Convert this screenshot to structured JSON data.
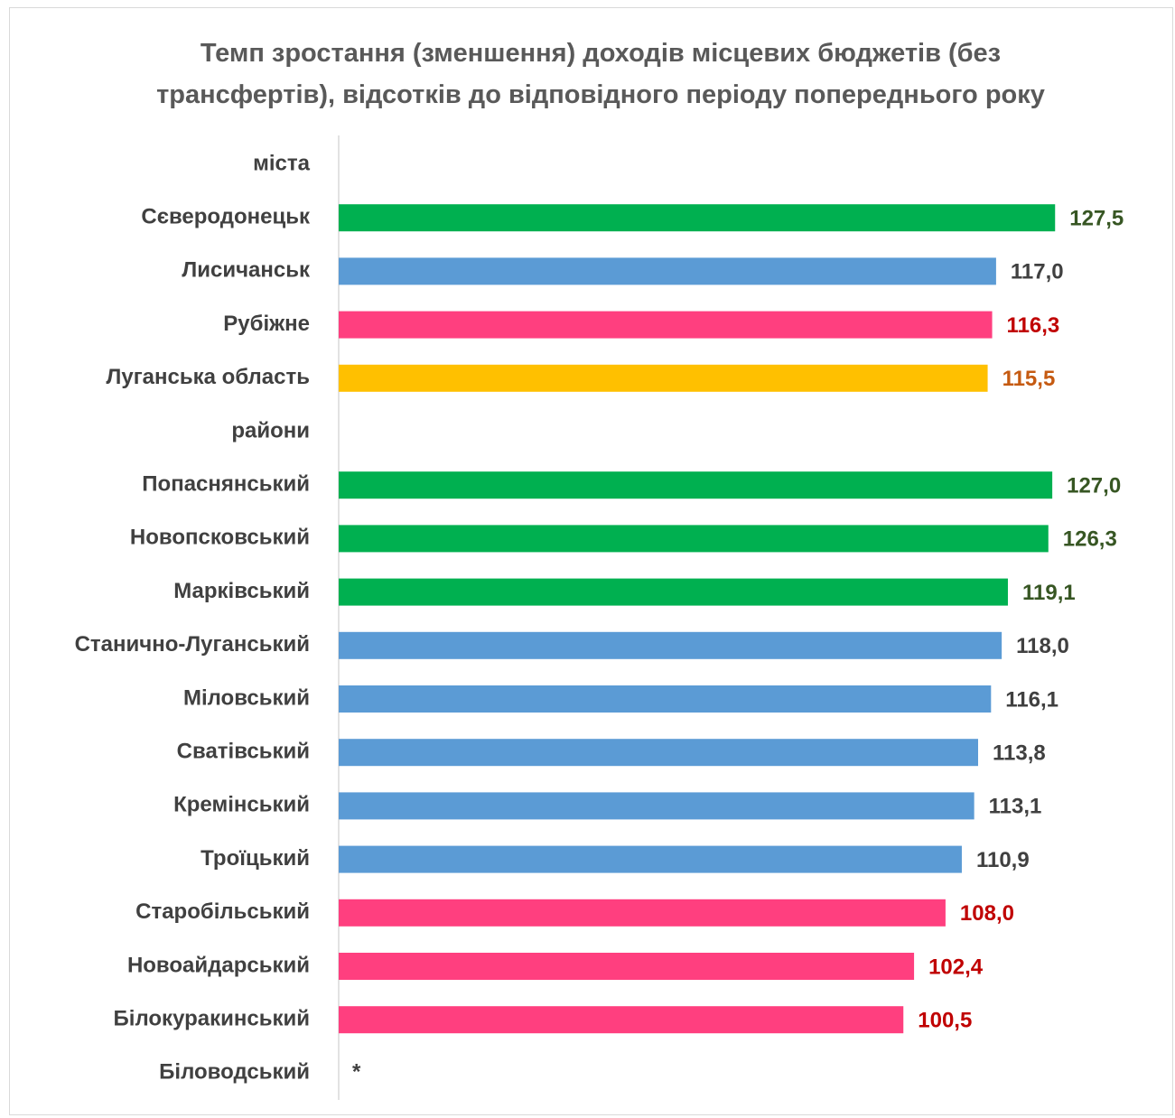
{
  "chart_data": {
    "type": "bar",
    "orientation": "horizontal",
    "title": "Темп зростання (зменшення) доходів місцевих бюджетів (без трансфертів), відсотків до відповідного періоду попереднього року",
    "categories": [
      "міста",
      "Сєверодонецьк",
      "Лисичанськ",
      "Рубіжне",
      "Луганська область",
      "райони",
      "Попаснянський",
      "Новопсковський",
      "Марківський",
      "Станично-Луганський",
      "Міловський",
      "Сватівський",
      "Кремінський",
      "Троїцький",
      "Старобільський",
      "Новоайдарський",
      "Білокуракинський",
      "Біловодський"
    ],
    "values": [
      null,
      127.5,
      117.0,
      116.3,
      115.5,
      null,
      127.0,
      126.3,
      119.1,
      118.0,
      116.1,
      113.8,
      113.1,
      110.9,
      108.0,
      102.4,
      100.5,
      null
    ],
    "value_labels": [
      null,
      "127,5",
      "117,0",
      "116,3",
      "115,5",
      null,
      "127,0",
      "126,3",
      "119,1",
      "118,0",
      "116,1",
      "113,8",
      "113,1",
      "110,9",
      "108,0",
      "102,4",
      "100,5",
      null
    ],
    "colors": [
      null,
      "#00b050",
      "#5b9bd5",
      "#ff3f7f",
      "#ffc000",
      null,
      "#00b050",
      "#00b050",
      "#00b050",
      "#5b9bd5",
      "#5b9bd5",
      "#5b9bd5",
      "#5b9bd5",
      "#5b9bd5",
      "#ff3f7f",
      "#ff3f7f",
      "#ff3f7f",
      null
    ],
    "label_colors": [
      null,
      "#375623",
      "#404040",
      "#c00000",
      "#c55a11",
      null,
      "#375623",
      "#375623",
      "#375623",
      "#404040",
      "#404040",
      "#404040",
      "#404040",
      "#404040",
      "#c00000",
      "#c00000",
      "#c00000",
      null
    ],
    "annotation": "*",
    "xlim": [
      0,
      140
    ]
  }
}
